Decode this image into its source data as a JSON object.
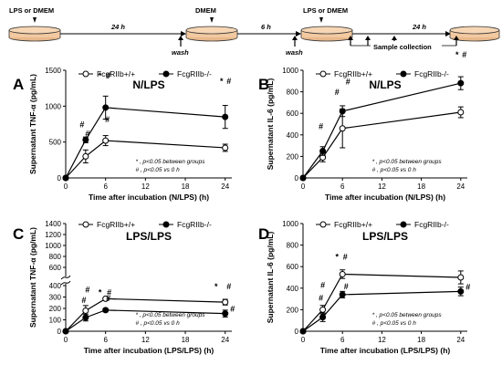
{
  "timeline": {
    "step1": "LPS or DMEM",
    "dur1": "24 h",
    "step2": "DMEM",
    "wash1": "wash",
    "dur2": "6 h",
    "step3": "LPS or DMEM",
    "wash2": "wash",
    "dur3": "24 h",
    "sample": "Sample collection"
  },
  "chart_data": [
    {
      "panel": "A",
      "type": "line",
      "title": "N/LPS",
      "xlabel": "Time after incubation (N/LPS) (h)",
      "ylabel": "Supernatant TNF-α (pg/mL)",
      "x": [
        0,
        3,
        6,
        24
      ],
      "xticks": [
        "0",
        "6",
        "12",
        "18",
        "24"
      ],
      "yticks": [
        "0",
        "500",
        "1000",
        "1500"
      ],
      "ylim": [
        0,
        1500
      ],
      "xlim": [
        0,
        25
      ],
      "legend_placement": "top",
      "series": [
        {
          "name": "FcgRIIb+/+",
          "marker": "open",
          "values": [
            0,
            300,
            520,
            420
          ],
          "err": [
            0,
            90,
            70,
            50
          ]
        },
        {
          "name": "FcgRIIb-/-",
          "marker": "filled",
          "values": [
            0,
            530,
            980,
            850
          ],
          "err": [
            0,
            40,
            160,
            160
          ]
        }
      ],
      "annotations": [
        "#",
        "#",
        "*",
        "#",
        "#",
        "*",
        "#"
      ],
      "notes": [
        "* , p<0.05 between groups",
        "# , p<0.05 vs 0 h"
      ]
    },
    {
      "panel": "B",
      "type": "line",
      "title": "N/LPS",
      "xlabel": "Time after incubation (N/LPS) (h)",
      "ylabel": "Supernatant IL-6 (pg/mL)",
      "x": [
        0,
        3,
        6,
        24
      ],
      "xticks": [
        "0",
        "6",
        "12",
        "18",
        "24"
      ],
      "yticks": [
        "0",
        "200",
        "400",
        "600",
        "800",
        "1000"
      ],
      "ylim": [
        0,
        1000
      ],
      "xlim": [
        0,
        25
      ],
      "legend_placement": "top",
      "series": [
        {
          "name": "FcgRIIb+/+",
          "marker": "open",
          "values": [
            0,
            190,
            460,
            610
          ],
          "err": [
            0,
            40,
            180,
            50
          ]
        },
        {
          "name": "FcgRIIb-/-",
          "marker": "filled",
          "values": [
            0,
            250,
            620,
            880
          ],
          "err": [
            0,
            40,
            50,
            60
          ]
        }
      ],
      "annotations": [
        "#",
        "#",
        "#",
        "*",
        "#"
      ],
      "notes": [
        "* , p<0.05 between groups",
        "# , p<0.05 vs 0 h"
      ]
    },
    {
      "panel": "C",
      "type": "line",
      "title": "LPS/LPS",
      "xlabel": "Time after incubation (LPS/LPS) (h)",
      "ylabel": "Supernatant TNF-α (pg/mL)",
      "x": [
        0,
        3,
        6,
        24
      ],
      "xticks": [
        "0",
        "6",
        "12",
        "18",
        "24"
      ],
      "yticks": [
        "0",
        "100",
        "200",
        "300",
        "400",
        "600",
        "800",
        "1000",
        "1200",
        "1400"
      ],
      "ylim": [
        0,
        1400
      ],
      "xlim": [
        0,
        25
      ],
      "axis_break": true,
      "legend_placement": "top",
      "series": [
        {
          "name": "FcgRIIb+/+",
          "marker": "open",
          "values": [
            0,
            180,
            285,
            255
          ],
          "err": [
            0,
            45,
            10,
            25
          ]
        },
        {
          "name": "FcgRIIb-/-",
          "marker": "filled",
          "values": [
            0,
            120,
            185,
            155
          ],
          "err": [
            0,
            30,
            15,
            30
          ]
        }
      ],
      "annotations": [
        "#",
        "#",
        "*",
        "#",
        "#",
        "*",
        "#",
        "#"
      ],
      "notes": [
        "* , p<0.05 between groups",
        "# , p<0.05 vs 0 h"
      ]
    },
    {
      "panel": "D",
      "type": "line",
      "title": "LPS/LPS",
      "xlabel": "Time after incubation (LPS/LPS) (h)",
      "ylabel": "Supernatant IL-6 (pg/mL)",
      "x": [
        0,
        3,
        6,
        24
      ],
      "xticks": [
        "0",
        "6",
        "12",
        "18",
        "24"
      ],
      "yticks": [
        "0",
        "200",
        "400",
        "600",
        "800",
        "1000"
      ],
      "ylim": [
        0,
        1000
      ],
      "xlim": [
        0,
        25
      ],
      "legend_placement": "top",
      "series": [
        {
          "name": "FcgRIIb+/+",
          "marker": "open",
          "values": [
            0,
            200,
            530,
            500
          ],
          "err": [
            0,
            40,
            40,
            60
          ]
        },
        {
          "name": "FcgRIIb-/-",
          "marker": "filled",
          "values": [
            0,
            130,
            340,
            370
          ],
          "err": [
            0,
            40,
            30,
            40
          ]
        }
      ],
      "annotations": [
        "#",
        "#",
        "*",
        "#",
        "#",
        "#"
      ],
      "notes": [
        "* , p<0.05 between groups",
        "# , p<0.05 vs 0 h"
      ]
    }
  ]
}
